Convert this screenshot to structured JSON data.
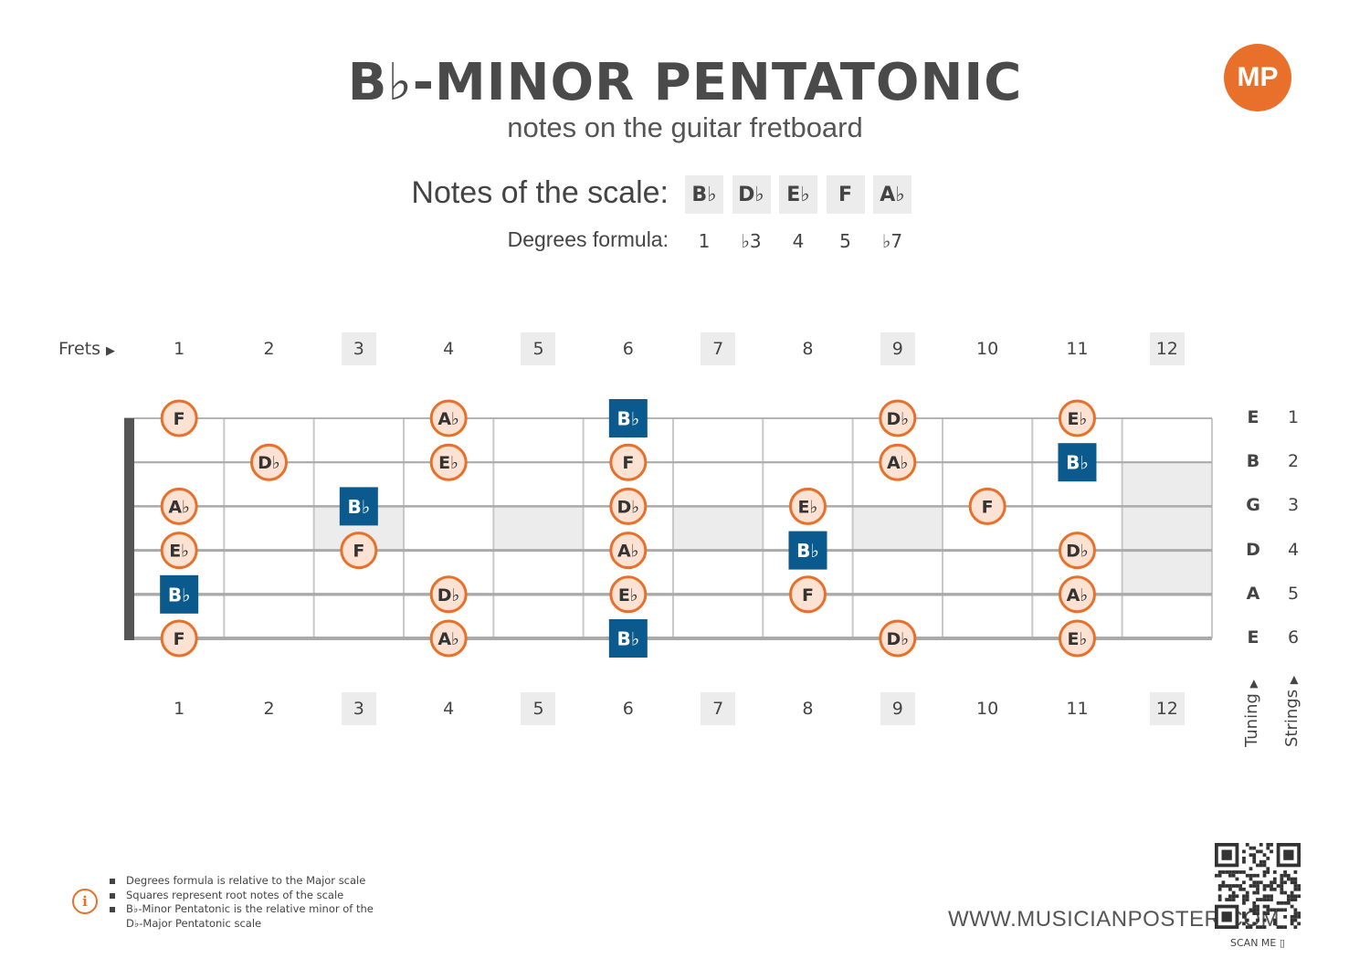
{
  "header": {
    "title": "B♭-MINOR PENTATONIC",
    "subtitle": "notes on the guitar fretboard",
    "logo_text": "MP"
  },
  "scale": {
    "label": "Notes of the scale:",
    "notes": [
      "B♭",
      "D♭",
      "E♭",
      "F",
      "A♭"
    ],
    "degrees_label": "Degrees formula:",
    "degrees": [
      "1",
      "♭3",
      "4",
      "5",
      "♭7"
    ]
  },
  "fretboard": {
    "frets_label": "Frets",
    "fret_numbers": [
      "1",
      "2",
      "3",
      "4",
      "5",
      "6",
      "7",
      "8",
      "9",
      "10",
      "11",
      "12"
    ],
    "marker_frets": [
      3,
      5,
      7,
      9,
      12
    ],
    "tuning": [
      "E",
      "B",
      "G",
      "D",
      "A",
      "E"
    ],
    "string_numbers": [
      "1",
      "2",
      "3",
      "4",
      "5",
      "6"
    ],
    "tuning_label": "Tuning",
    "strings_label": "Strings",
    "notes": [
      {
        "string": 1,
        "fret": 1,
        "note": "F",
        "root": false
      },
      {
        "string": 1,
        "fret": 4,
        "note": "A♭",
        "root": false
      },
      {
        "string": 1,
        "fret": 6,
        "note": "B♭",
        "root": true
      },
      {
        "string": 1,
        "fret": 9,
        "note": "D♭",
        "root": false
      },
      {
        "string": 1,
        "fret": 11,
        "note": "E♭",
        "root": false
      },
      {
        "string": 2,
        "fret": 2,
        "note": "D♭",
        "root": false
      },
      {
        "string": 2,
        "fret": 4,
        "note": "E♭",
        "root": false
      },
      {
        "string": 2,
        "fret": 6,
        "note": "F",
        "root": false
      },
      {
        "string": 2,
        "fret": 9,
        "note": "A♭",
        "root": false
      },
      {
        "string": 2,
        "fret": 11,
        "note": "B♭",
        "root": true
      },
      {
        "string": 3,
        "fret": 1,
        "note": "A♭",
        "root": false
      },
      {
        "string": 3,
        "fret": 3,
        "note": "B♭",
        "root": true
      },
      {
        "string": 3,
        "fret": 6,
        "note": "D♭",
        "root": false
      },
      {
        "string": 3,
        "fret": 8,
        "note": "E♭",
        "root": false
      },
      {
        "string": 3,
        "fret": 10,
        "note": "F",
        "root": false
      },
      {
        "string": 4,
        "fret": 1,
        "note": "E♭",
        "root": false
      },
      {
        "string": 4,
        "fret": 3,
        "note": "F",
        "root": false
      },
      {
        "string": 4,
        "fret": 6,
        "note": "A♭",
        "root": false
      },
      {
        "string": 4,
        "fret": 8,
        "note": "B♭",
        "root": true
      },
      {
        "string": 4,
        "fret": 11,
        "note": "D♭",
        "root": false
      },
      {
        "string": 5,
        "fret": 1,
        "note": "B♭",
        "root": true
      },
      {
        "string": 5,
        "fret": 4,
        "note": "D♭",
        "root": false
      },
      {
        "string": 5,
        "fret": 6,
        "note": "E♭",
        "root": false
      },
      {
        "string": 5,
        "fret": 8,
        "note": "F",
        "root": false
      },
      {
        "string": 5,
        "fret": 11,
        "note": "A♭",
        "root": false
      },
      {
        "string": 6,
        "fret": 1,
        "note": "F",
        "root": false
      },
      {
        "string": 6,
        "fret": 4,
        "note": "A♭",
        "root": false
      },
      {
        "string": 6,
        "fret": 6,
        "note": "B♭",
        "root": true
      },
      {
        "string": 6,
        "fret": 9,
        "note": "D♭",
        "root": false
      },
      {
        "string": 6,
        "fret": 11,
        "note": "E♭",
        "root": false
      }
    ]
  },
  "footer": {
    "notes": [
      "Degrees formula is relative to the Major scale",
      "Squares represent root notes of the scale",
      "B♭-Minor Pentatonic is the relative minor of the",
      "D♭-Major Pentatonic scale"
    ],
    "website": "WWW.MUSICIANPOSTER.COM",
    "scan_label": "SCAN ME"
  },
  "colors": {
    "accent": "#e8702a",
    "root": "#0a5a8e",
    "note_fill": "#fbe2d2",
    "marker": "#ececec",
    "string": "#aaaaaa",
    "nut": "#555555"
  }
}
